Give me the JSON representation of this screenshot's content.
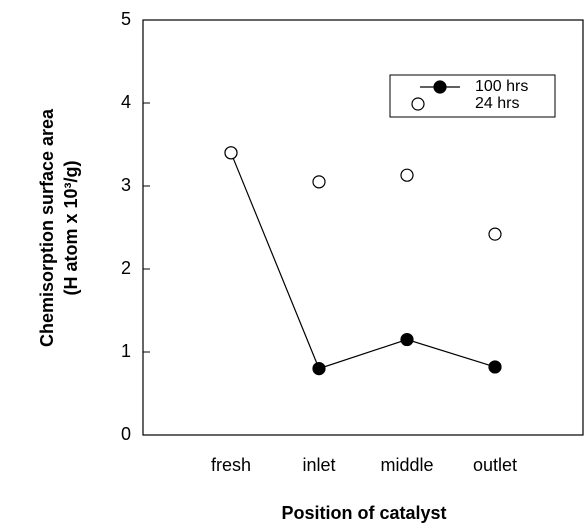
{
  "chart_data": {
    "type": "line",
    "x_label": "Position of catalyst",
    "y_label": [
      "Chemisorption surface area",
      "(H atom x 10³/g)"
    ],
    "categories": [
      "fresh",
      "inlet",
      "middle",
      "outlet"
    ],
    "series": [
      {
        "name": "100 hrs",
        "color": "#000000",
        "values": [
          3.4,
          0.8,
          1.15,
          0.82
        ],
        "line": true,
        "marker": "filled"
      },
      {
        "name": "24 hrs",
        "color": "#000000",
        "values": [
          3.4,
          3.05,
          3.13,
          2.42
        ],
        "line": false,
        "marker": "open"
      }
    ],
    "ylim": [
      0,
      5
    ],
    "yticks": [
      0,
      1,
      2,
      3,
      4,
      5
    ],
    "legend": "upper right"
  }
}
